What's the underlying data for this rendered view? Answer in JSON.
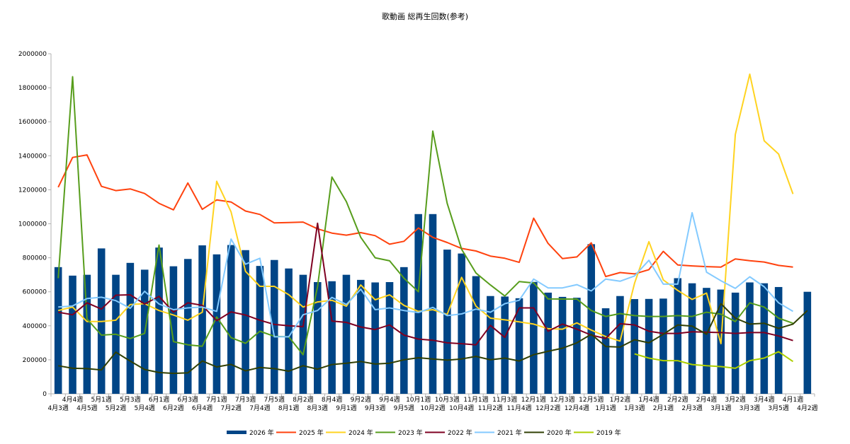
{
  "chart_data": {
    "type": "bar+line",
    "title": "歌動画 総再生回数(参考)",
    "ylim": [
      0,
      2000000
    ],
    "yticks": [
      0,
      200000,
      400000,
      600000,
      800000,
      1000000,
      1200000,
      1400000,
      1600000,
      1800000,
      2000000
    ],
    "grid": false,
    "legend_position": "bottom",
    "categories": [
      "4月3週",
      "4月4週",
      "4月5週",
      "5月1週",
      "5月2週",
      "5月3週",
      "5月4週",
      "6月1週",
      "6月2週",
      "6月3週",
      "6月4週",
      "7月1週",
      "7月2週",
      "7月3週",
      "7月4週",
      "7月5週",
      "8月1週",
      "8月2週",
      "8月3週",
      "8月4週",
      "9月1週",
      "9月2週",
      "9月3週",
      "9月4週",
      "9月5週",
      "10月1週",
      "10月2週",
      "10月3週",
      "10月4週",
      "11月1週",
      "11月2週",
      "11月3週",
      "11月4週",
      "12月1週",
      "12月2週",
      "12月3週",
      "12月4週",
      "12月5週",
      "1月1週",
      "1月2週",
      "1月3週",
      "1月4週",
      "2月1週",
      "2月2週",
      "2月3週",
      "2月4週",
      "3月1週",
      "3月2週",
      "3月3週",
      "3月4週",
      "3月5週",
      "4月1週",
      "4月2週"
    ],
    "bar_series": {
      "name": "2026 年",
      "color": "#004586",
      "values": [
        745000,
        695000,
        700000,
        855000,
        700000,
        770000,
        730000,
        860000,
        750000,
        793000,
        873000,
        820000,
        875000,
        845000,
        752000,
        787000,
        737000,
        700000,
        657000,
        662000,
        700000,
        670000,
        655000,
        657000,
        745000,
        1057000,
        1057000,
        848000,
        825000,
        692000,
        575000,
        572000,
        562000,
        658000,
        595000,
        570000,
        565000,
        880000,
        503000,
        575000,
        557000,
        558000,
        560000,
        680000,
        650000,
        623000,
        613000,
        595000,
        655000,
        650000,
        628000,
        null,
        600000
      ]
    },
    "series": [
      {
        "name": "2025 年",
        "color": "#ff420e",
        "values": [
          1215000,
          1390000,
          1405000,
          1220000,
          1195000,
          1205000,
          1178000,
          1120000,
          1082000,
          1240000,
          1085000,
          1140000,
          1128000,
          1075000,
          1055000,
          1005000,
          1007000,
          1010000,
          970000,
          945000,
          933000,
          948000,
          930000,
          880000,
          897000,
          975000,
          920000,
          890000,
          855000,
          840000,
          810000,
          797000,
          773000,
          1033000,
          885000,
          795000,
          805000,
          888000,
          690000,
          713000,
          705000,
          730000,
          838000,
          758000,
          752000,
          748000,
          745000,
          793000,
          783000,
          775000,
          755000,
          745000,
          null
        ]
      },
      {
        "name": "2024 年",
        "color": "#ffd320",
        "values": [
          490000,
          510000,
          425000,
          425000,
          433000,
          525000,
          530000,
          490000,
          463000,
          433000,
          480000,
          1250000,
          1070000,
          720000,
          632000,
          632000,
          583000,
          510000,
          540000,
          550000,
          515000,
          640000,
          553000,
          582000,
          520000,
          485000,
          495000,
          467000,
          685000,
          515000,
          445000,
          435000,
          423000,
          410000,
          383000,
          380000,
          417000,
          375000,
          337000,
          310000,
          650000,
          895000,
          670000,
          608000,
          555000,
          592000,
          295000,
          1525000,
          1880000,
          1488000,
          1410000,
          1175000,
          null
        ]
      },
      {
        "name": "2023 年",
        "color": "#579d1c",
        "values": [
          680000,
          1865000,
          440000,
          345000,
          350000,
          325000,
          355000,
          875000,
          307000,
          288000,
          280000,
          452000,
          330000,
          297000,
          368000,
          338000,
          335000,
          230000,
          630000,
          1275000,
          1130000,
          920000,
          800000,
          782000,
          680000,
          600000,
          1545000,
          1120000,
          850000,
          710000,
          640000,
          575000,
          660000,
          652000,
          558000,
          557000,
          557000,
          490000,
          455000,
          472000,
          460000,
          455000,
          455000,
          460000,
          455000,
          480000,
          468000,
          425000,
          535000,
          510000,
          445000,
          415000,
          null
        ]
      },
      {
        "name": "2022 年",
        "color": "#7e0021",
        "values": [
          480000,
          465000,
          535000,
          498000,
          580000,
          582000,
          528000,
          573000,
          480000,
          535000,
          520000,
          430000,
          482000,
          463000,
          433000,
          408000,
          400000,
          395000,
          1003000,
          428000,
          420000,
          393000,
          378000,
          405000,
          345000,
          322000,
          315000,
          300000,
          295000,
          288000,
          402000,
          332000,
          505000,
          505000,
          368000,
          410000,
          380000,
          345000,
          325000,
          412000,
          405000,
          368000,
          355000,
          355000,
          365000,
          362000,
          360000,
          355000,
          360000,
          360000,
          340000,
          313000,
          null
        ]
      },
      {
        "name": "2021 年",
        "color": "#83caff",
        "values": [
          510000,
          517000,
          560000,
          568000,
          548000,
          503000,
          603000,
          528000,
          495000,
          505000,
          510000,
          485000,
          910000,
          762000,
          797000,
          335000,
          335000,
          465000,
          490000,
          567000,
          525000,
          615000,
          495000,
          505000,
          490000,
          478000,
          508000,
          460000,
          470000,
          498000,
          480000,
          530000,
          550000,
          675000,
          623000,
          623000,
          642000,
          605000,
          675000,
          662000,
          693000,
          785000,
          645000,
          645000,
          1065000,
          715000,
          665000,
          620000,
          688000,
          630000,
          535000,
          485000,
          null
        ]
      },
      {
        "name": "2020 年",
        "color": "#314004",
        "values": [
          165000,
          150000,
          148000,
          140000,
          245000,
          192000,
          143000,
          125000,
          120000,
          123000,
          193000,
          158000,
          173000,
          135000,
          155000,
          148000,
          133000,
          165000,
          145000,
          172000,
          180000,
          190000,
          175000,
          180000,
          200000,
          212000,
          205000,
          198000,
          205000,
          220000,
          200000,
          210000,
          193000,
          230000,
          250000,
          268000,
          300000,
          350000,
          278000,
          275000,
          318000,
          300000,
          350000,
          405000,
          398000,
          350000,
          530000,
          445000,
          410000,
          415000,
          385000,
          410000,
          490000
        ]
      },
      {
        "name": "2019 年",
        "color": "#aecf00",
        "values": [
          null,
          null,
          null,
          null,
          null,
          null,
          null,
          null,
          null,
          null,
          null,
          null,
          null,
          null,
          null,
          null,
          null,
          null,
          null,
          null,
          null,
          null,
          null,
          null,
          null,
          null,
          null,
          null,
          null,
          null,
          null,
          null,
          null,
          null,
          null,
          null,
          null,
          null,
          null,
          null,
          235000,
          210000,
          195000,
          195000,
          172000,
          165000,
          160000,
          150000,
          195000,
          210000,
          248000,
          190000,
          null
        ]
      }
    ]
  }
}
